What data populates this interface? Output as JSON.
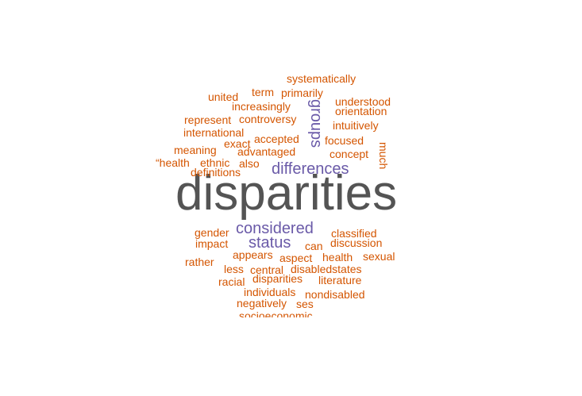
{
  "colors": {
    "primary": "#545454",
    "secondary": "#6a5aa8",
    "tertiary": "#d45500"
  },
  "words": {
    "disparities_main": "disparities",
    "considered": "considered",
    "differences": "differences",
    "status": "status",
    "groups": "groups",
    "systematically": "systematically",
    "united": "united",
    "term": "term",
    "primarily": "primarily",
    "understood": "understood",
    "increasingly": "increasingly",
    "orientation": "orientation",
    "represent": "represent",
    "controversy": "controversy",
    "intuitively": "intuitively",
    "international": "international",
    "exact": "exact",
    "accepted": "accepted",
    "focused": "focused",
    "meaning": "meaning",
    "advantaged": "advantaged",
    "concept": "concept",
    "much": "much",
    "health_quote": "“health",
    "ethnic": "ethnic",
    "also": "also",
    "definitions": "definitions",
    "gender": "gender",
    "classified": "classified",
    "impact": "impact",
    "discussion": "discussion",
    "can": "can",
    "appears": "appears",
    "rather": "rather",
    "aspect": "aspect",
    "health": "health",
    "sexual": "sexual",
    "less": "less",
    "central": "central",
    "disabledstates": "disabledstates",
    "racial": "racial",
    "disparities_small": "disparities",
    "literature": "literature",
    "individuals": "individuals",
    "nondisabled": "nondisabled",
    "negatively": "negatively",
    "ses": "ses",
    "socioeconomic": "socioeconomic"
  }
}
